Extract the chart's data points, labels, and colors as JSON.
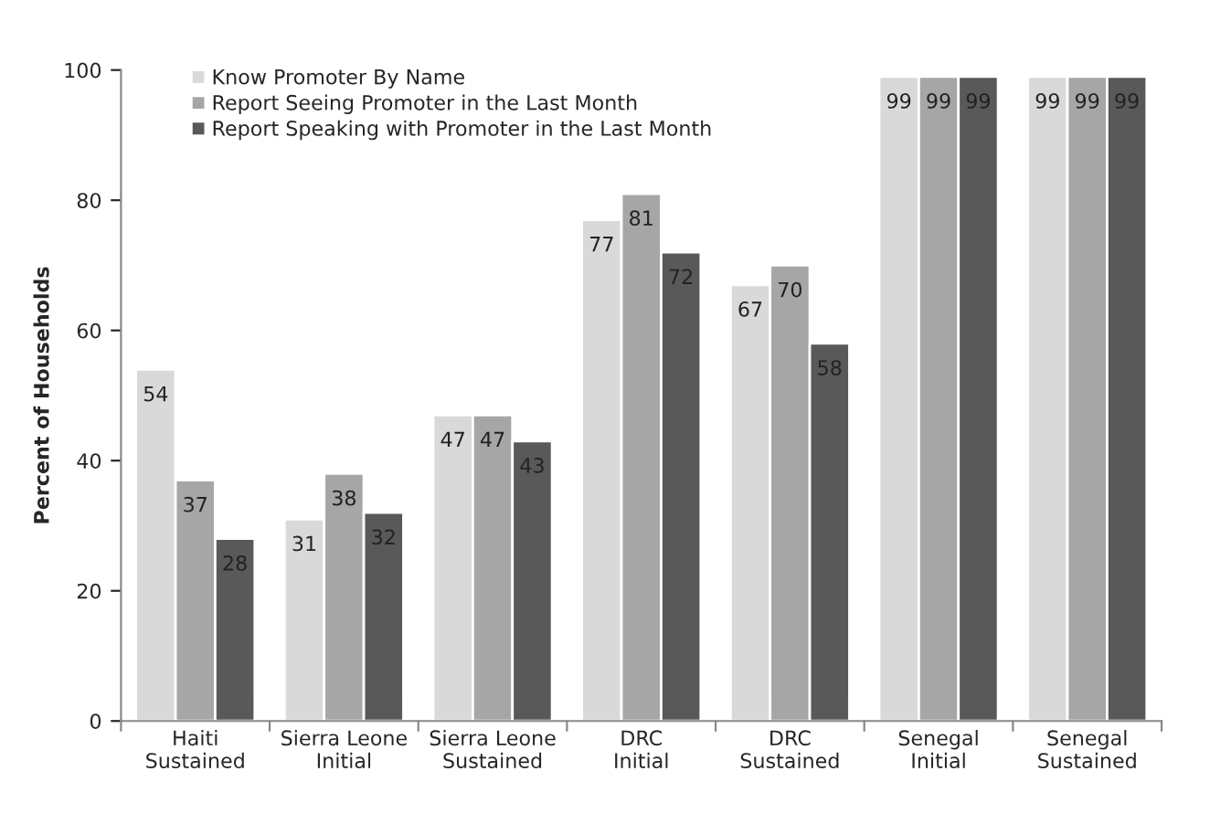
{
  "chart_data": {
    "type": "bar",
    "ylabel": "Percent of Households",
    "categories": [
      "Haiti\nSustained",
      "Sierra Leone\nInitial",
      "Sierra Leone\nSustained",
      "DRC\nInitial",
      "DRC\nSustained",
      "Senegal\nInitial",
      "Senegal\nSustained"
    ],
    "series": [
      {
        "name": "Know Promoter By Name",
        "color": "#d9d9d9",
        "values": [
          54,
          31,
          47,
          77,
          67,
          99,
          99
        ]
      },
      {
        "name": "Report Seeing Promoter in the Last Month",
        "color": "#a6a6a6",
        "values": [
          37,
          38,
          47,
          81,
          70,
          99,
          99
        ]
      },
      {
        "name": "Report Speaking with Promoter in the Last Month",
        "color": "#595959",
        "values": [
          28,
          32,
          43,
          72,
          58,
          99,
          99
        ]
      }
    ],
    "ylim": [
      0,
      100
    ],
    "yticks": [
      0,
      20,
      40,
      60,
      80,
      100
    ],
    "data_labels": true,
    "legend": "top left",
    "grid": false
  }
}
